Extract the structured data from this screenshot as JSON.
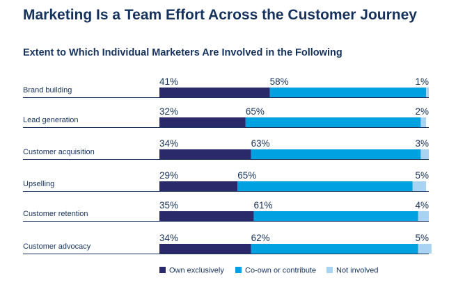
{
  "title": "Marketing Is a Team Effort Across the Customer Journey",
  "subtitle": "Extent to Which Individual Marketers Are Involved in the Following",
  "chart_data": {
    "type": "bar",
    "orientation": "horizontal",
    "stacked": true,
    "categories": [
      "Brand building",
      "Lead generation",
      "Customer acquisition",
      "Upselling",
      "Customer retention",
      "Customer advocacy"
    ],
    "series": [
      {
        "name": "Own exclusively",
        "color": "#2a2a6b",
        "values": [
          41,
          32,
          34,
          29,
          35,
          34
        ],
        "labels": [
          "41%",
          "32%",
          "34%",
          "29%",
          "35%",
          "34%"
        ]
      },
      {
        "name": "Co-own or contribute",
        "color": "#00a1e0",
        "values": [
          58,
          65,
          63,
          65,
          61,
          62
        ],
        "labels": [
          "58%",
          "65%",
          "63%",
          "65%",
          "61%",
          "62%"
        ]
      },
      {
        "name": "Not involved",
        "color": "#a9d3f2",
        "values": [
          1,
          2,
          3,
          5,
          4,
          5
        ],
        "labels": [
          "1%",
          "2%",
          "3%",
          "5%",
          "4%",
          "5%"
        ]
      }
    ],
    "legend_position": "bottom",
    "grid": false
  }
}
